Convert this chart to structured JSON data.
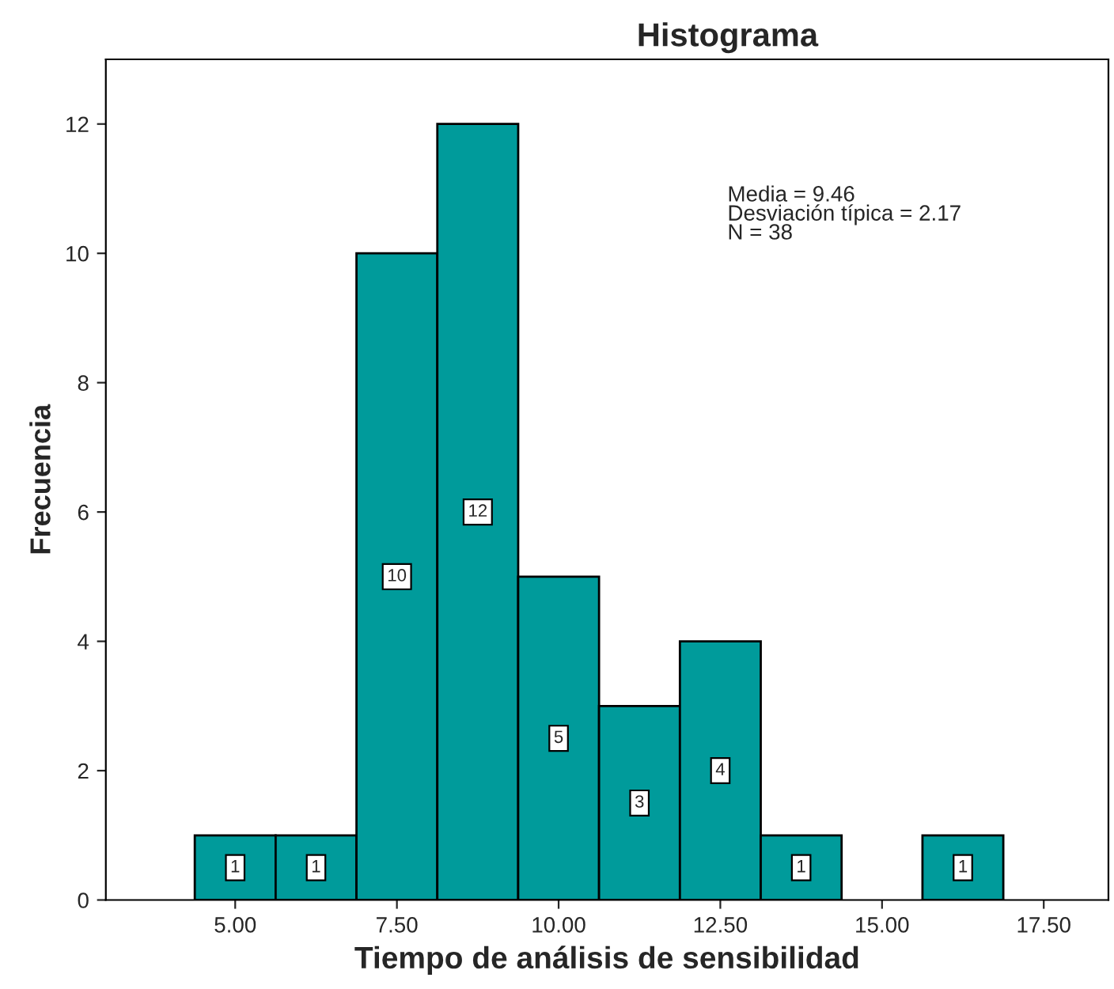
{
  "chart_data": {
    "type": "histogram",
    "title": "Histograma",
    "xlabel": "Tiempo de análisis de sensibilidad",
    "ylabel": "Frecuencia",
    "bins": [
      4.375,
      5.625,
      6.875,
      8.125,
      9.375,
      10.625,
      11.875,
      13.125,
      14.375,
      15.625,
      16.875
    ],
    "values": [
      1,
      1,
      10,
      12,
      5,
      3,
      4,
      1,
      0,
      1
    ],
    "value_labels": [
      "1",
      "1",
      "10",
      "12",
      "5",
      "3",
      "4",
      "1",
      null,
      "1"
    ],
    "color": "#009b9b",
    "xlim": [
      3,
      18.5
    ],
    "xticks": [
      {
        "value": 5,
        "label": "5.00"
      },
      {
        "value": 7.5,
        "label": "7.50"
      },
      {
        "value": 10,
        "label": "10.00"
      },
      {
        "value": 12.5,
        "label": "12.50"
      },
      {
        "value": 15,
        "label": "15.00"
      },
      {
        "value": 17.5,
        "label": "17.50"
      }
    ],
    "ylim": [
      0,
      13
    ],
    "yticks": [
      0,
      2,
      4,
      6,
      8,
      10,
      12
    ],
    "grid": false,
    "annotations": [
      "Media = 9.46",
      "Desviación típica = 2.17",
      "N = 38"
    ]
  }
}
